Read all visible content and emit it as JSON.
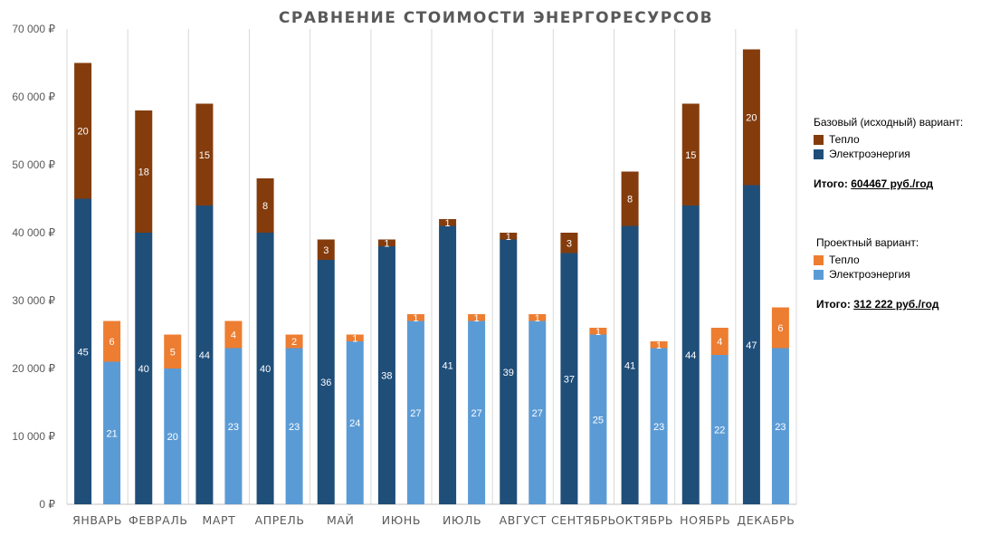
{
  "chart_data": {
    "type": "bar",
    "title": "СРАВНЕНИЕ СТОИМОСТИ ЭНЕРГОРЕСУРСОВ",
    "stacked": true,
    "categories": [
      "ЯНВАРЬ",
      "ФЕВРАЛЬ",
      "МАРТ",
      "АПРЕЛЬ",
      "МАЙ",
      "ИЮНЬ",
      "ИЮЛЬ",
      "АВГУСТ",
      "СЕНТЯБРЬ",
      "ОКТЯБРЬ",
      "НОЯБРЬ",
      "ДЕКАБРЬ"
    ],
    "ylim": [
      0,
      70000
    ],
    "yticks": [
      0,
      10000,
      20000,
      30000,
      40000,
      50000,
      60000,
      70000
    ],
    "ytick_labels": [
      "0 ₽",
      "10 000 ₽",
      "20 000 ₽",
      "30 000 ₽",
      "40 000 ₽",
      "50 000 ₽",
      "60 000 ₽",
      "70 000 ₽"
    ],
    "grid": "vertical",
    "legend_placement": "right",
    "groups": [
      {
        "key": "base",
        "series": [
          {
            "name": "Электроэнергия",
            "color": "#1F4E79",
            "values": [
              45000,
              40000,
              44000,
              40000,
              36000,
              38000,
              41000,
              39000,
              37000,
              41000,
              44000,
              47000
            ],
            "labels": [
              "45",
              "40",
              "44",
              "40",
              "36",
              "38",
              "41",
              "39",
              "37",
              "41",
              "44",
              "47"
            ]
          },
          {
            "name": "Тепло",
            "color": "#843C0C",
            "values": [
              20000,
              18000,
              15000,
              8000,
              3000,
              1000,
              1000,
              1000,
              3000,
              8000,
              15000,
              20000
            ],
            "labels": [
              "20",
              "18",
              "15",
              "8",
              "3",
              "1",
              "1",
              "1",
              "3",
              "8",
              "15",
              "20"
            ]
          }
        ]
      },
      {
        "key": "project",
        "series": [
          {
            "name": "Электроэнергия",
            "color": "#5B9BD5",
            "values": [
              21000,
              20000,
              23000,
              23000,
              24000,
              27000,
              27000,
              27000,
              25000,
              23000,
              22000,
              23000
            ],
            "labels": [
              "21",
              "20",
              "23",
              "23",
              "24",
              "27",
              "27",
              "27",
              "25",
              "23",
              "22",
              "23"
            ]
          },
          {
            "name": "Тепло",
            "color": "#ED7D31",
            "values": [
              6000,
              5000,
              4000,
              2000,
              1000,
              1000,
              1000,
              1000,
              1000,
              1000,
              4000,
              6000
            ],
            "labels": [
              "6",
              "5",
              "4",
              "2",
              "1",
              "1",
              "1",
              "1",
              "1",
              "1",
              "4",
              "6"
            ]
          }
        ]
      }
    ]
  },
  "legend": {
    "base": {
      "heading": "Базовый (исходный) вариант:",
      "items": [
        {
          "label": "Тепло",
          "color": "#843C0C"
        },
        {
          "label": "Электроэнергия",
          "color": "#1F4E79"
        }
      ],
      "total_label": "Итого: ",
      "total_value": "604467 руб./год"
    },
    "project": {
      "heading": "Проектный вариант:",
      "items": [
        {
          "label": "Тепло",
          "color": "#ED7D31"
        },
        {
          "label": "Электроэнергия",
          "color": "#5B9BD5"
        }
      ],
      "total_label": "Итого: ",
      "total_value": "312 222 руб./год"
    }
  }
}
